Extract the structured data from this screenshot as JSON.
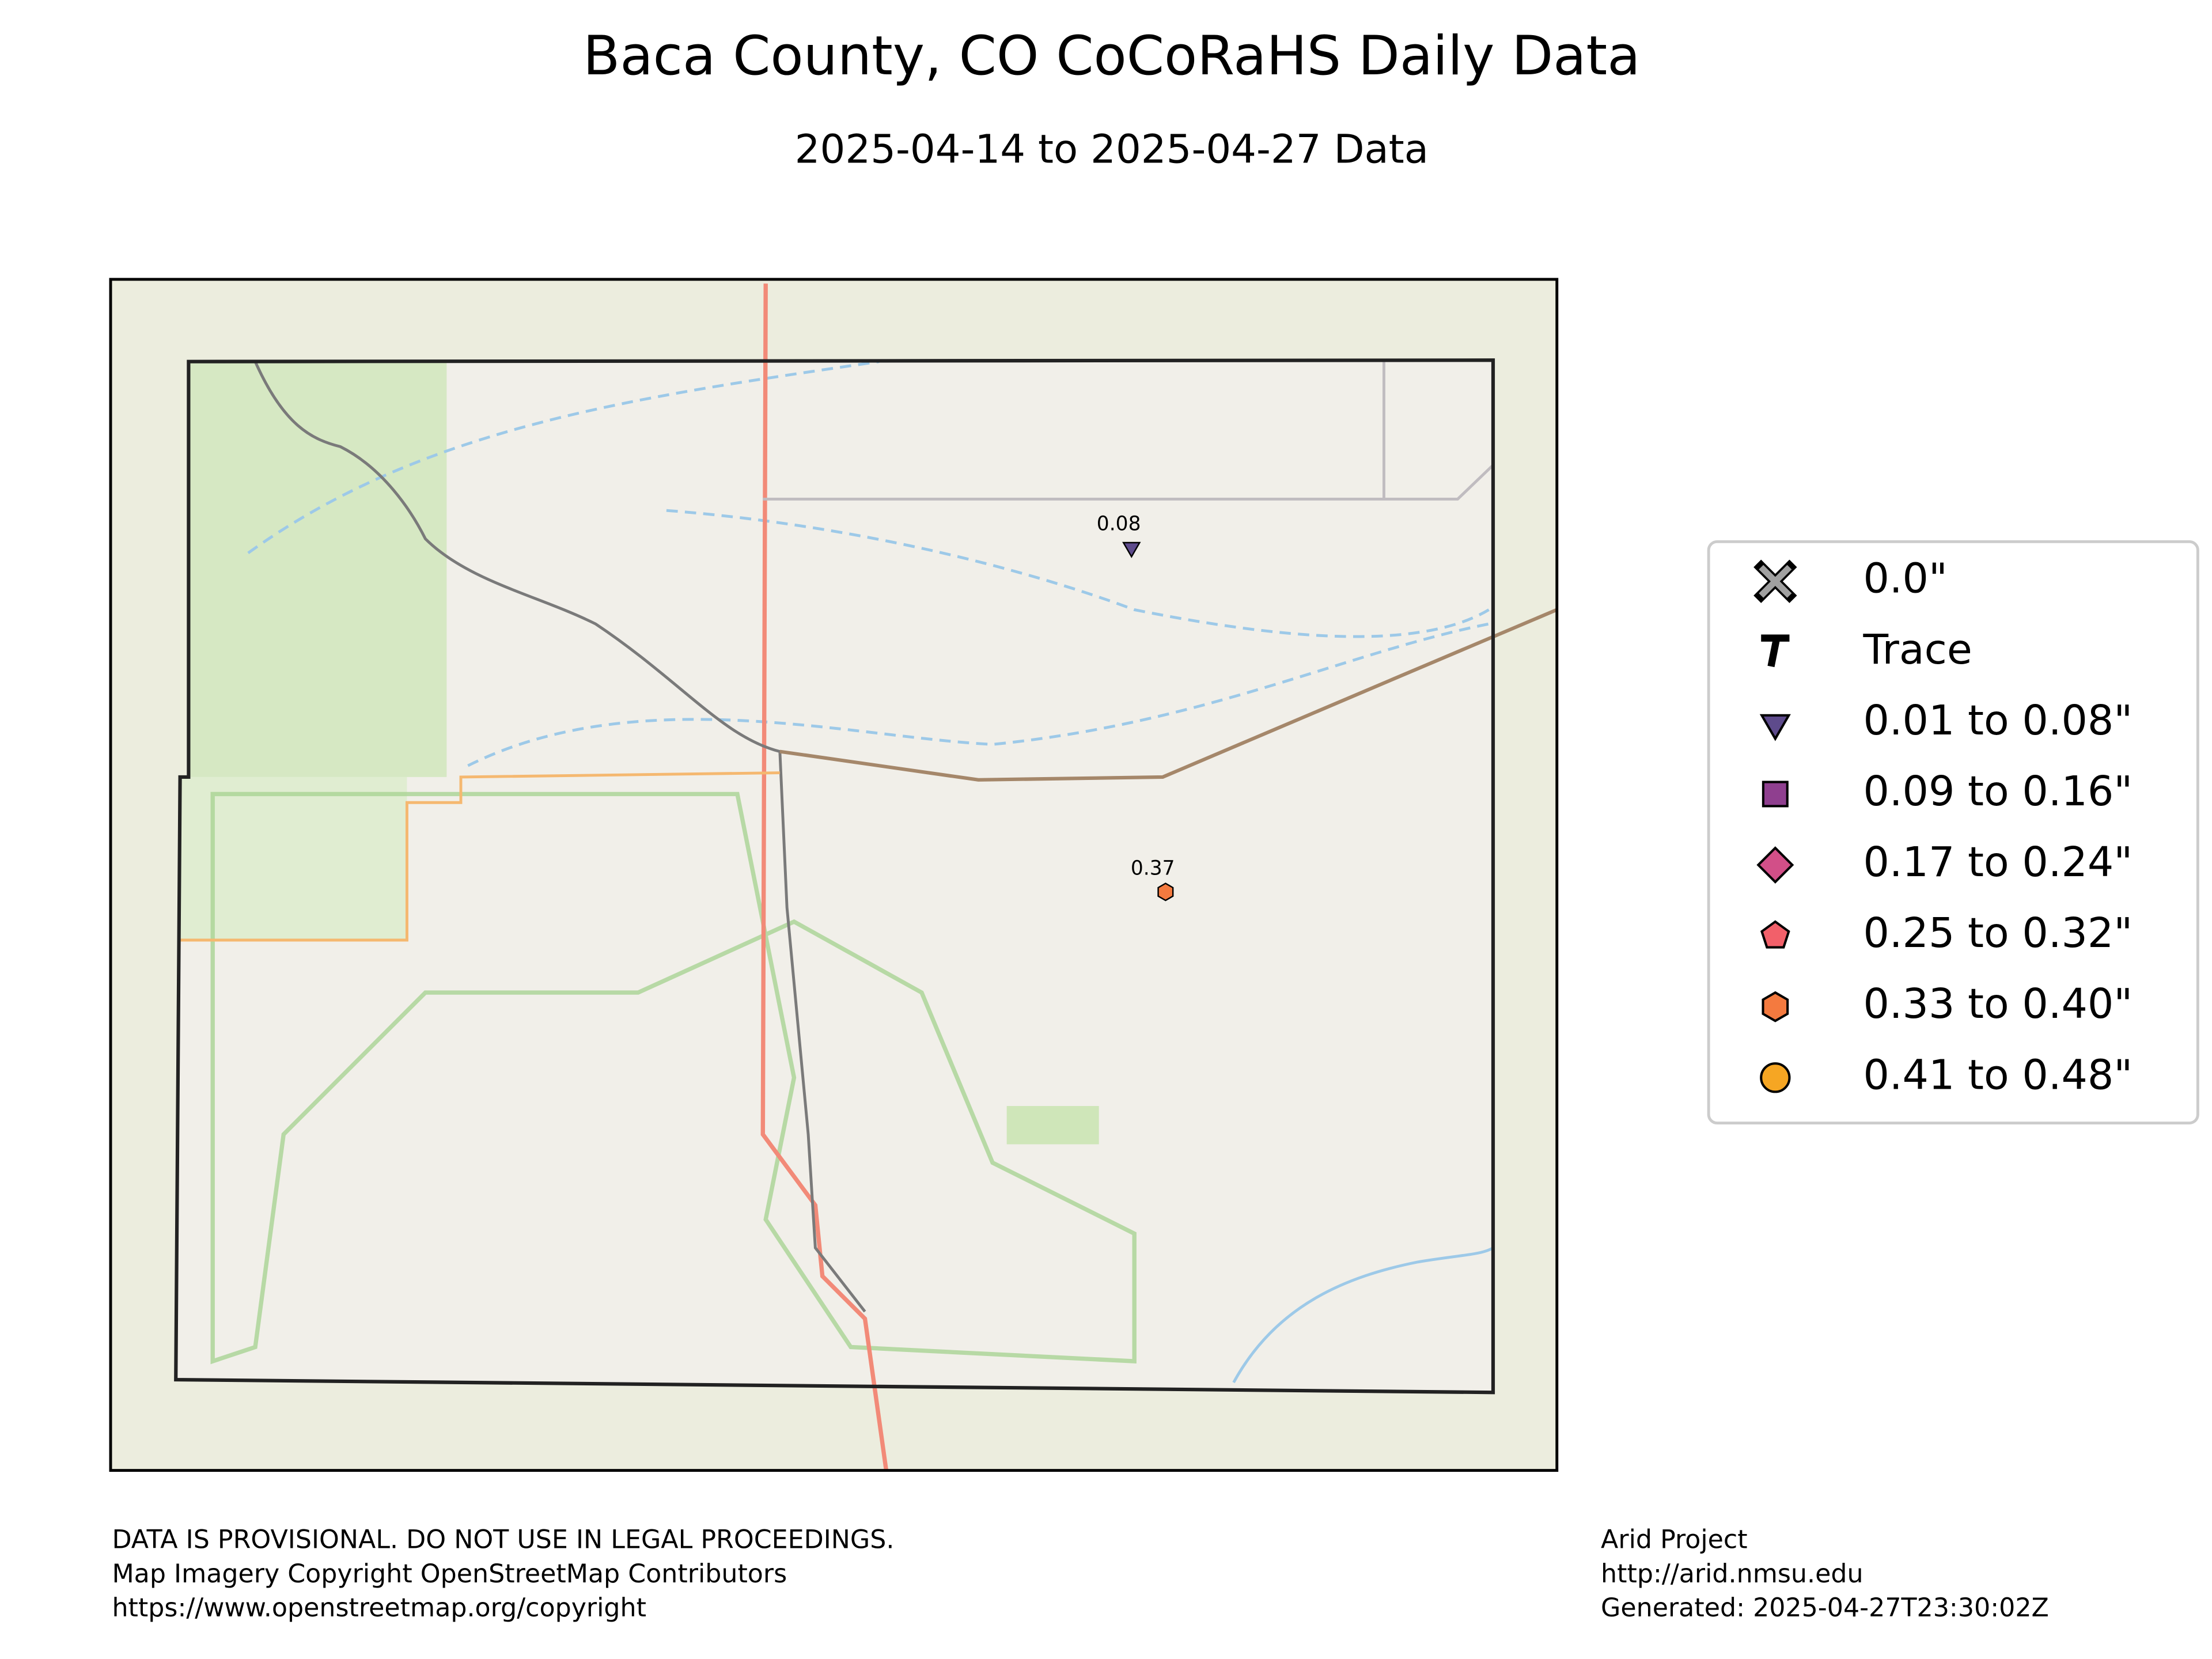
{
  "title": "Baca County, CO CoCoRaHS Daily Data",
  "subtitle": "2025-04-14 to 2025-04-27 Data",
  "legend": [
    {
      "label": "0.0\"",
      "marker": "x",
      "color": "#a0a0a0"
    },
    {
      "label": "Trace",
      "marker": "T",
      "color": "#000000"
    },
    {
      "label": "0.01 to 0.08\"",
      "marker": "triangle",
      "color": "#5e4b8c"
    },
    {
      "label": "0.09 to 0.16\"",
      "marker": "square",
      "color": "#8f3f8f"
    },
    {
      "label": "0.17 to 0.24\"",
      "marker": "diamond",
      "color": "#d24f88"
    },
    {
      "label": "0.25 to 0.32\"",
      "marker": "pentagon",
      "color": "#f2606a"
    },
    {
      "label": "0.33 to 0.40\"",
      "marker": "hexagon",
      "color": "#f47a3f"
    },
    {
      "label": "0.41 to 0.48\"",
      "marker": "circle",
      "color": "#f6a623"
    }
  ],
  "stations": [
    {
      "value": 0.08,
      "marker": "triangle",
      "color": "#5e4b8c"
    },
    {
      "value": 0.37,
      "marker": "hexagon",
      "color": "#f47a3f"
    }
  ],
  "footer_left": [
    "DATA IS PROVISIONAL. DO NOT USE IN LEGAL PROCEEDINGS.",
    "Map Imagery Copyright OpenStreetMap Contributors",
    "https://www.openstreetmap.org/copyright"
  ],
  "footer_right": [
    "Arid Project",
    "http://arid.nmsu.edu",
    "Generated: 2025-04-27T23:30:02Z"
  ]
}
